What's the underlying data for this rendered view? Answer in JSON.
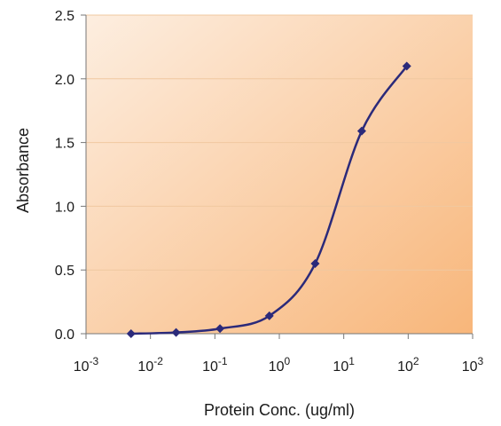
{
  "chart_data": {
    "type": "line",
    "xlabel": "Protein Conc. (ug/ml)",
    "ylabel": "Absorbance",
    "xscale": "log10",
    "xlim": [
      0.001,
      1000
    ],
    "ylim": [
      0,
      2.5
    ],
    "x_tick_values": [
      0.001,
      0.01,
      0.1,
      1,
      10,
      100,
      1000
    ],
    "x_tick_labels": [
      {
        "base": "10",
        "exp": "-3"
      },
      {
        "base": "10",
        "exp": "-2"
      },
      {
        "base": "10",
        "exp": "-1"
      },
      {
        "base": "10",
        "exp": "0"
      },
      {
        "base": "10",
        "exp": "1"
      },
      {
        "base": "10",
        "exp": "2"
      },
      {
        "base": "10",
        "exp": "3"
      }
    ],
    "y_tick_values": [
      0,
      0.5,
      1,
      1.5,
      2,
      2.5
    ],
    "y_tick_labels": [
      "0.0",
      "0.5",
      "1.0",
      "1.5",
      "2.0",
      "2.5"
    ],
    "grid": "horizontal",
    "legend": "none",
    "series": [
      {
        "x": [
          0.005,
          0.025,
          0.12,
          0.7,
          3.6,
          19,
          95
        ],
        "y": [
          0.0,
          0.01,
          0.04,
          0.14,
          0.55,
          1.59,
          2.1
        ],
        "marker": "diamond"
      }
    ],
    "colors": {
      "line": "#2b2a7a",
      "grid": "#f0c8a0",
      "plot_bg_from": "#fdeee0",
      "plot_bg_to": "#f8b67a",
      "axis": "#777777"
    }
  }
}
